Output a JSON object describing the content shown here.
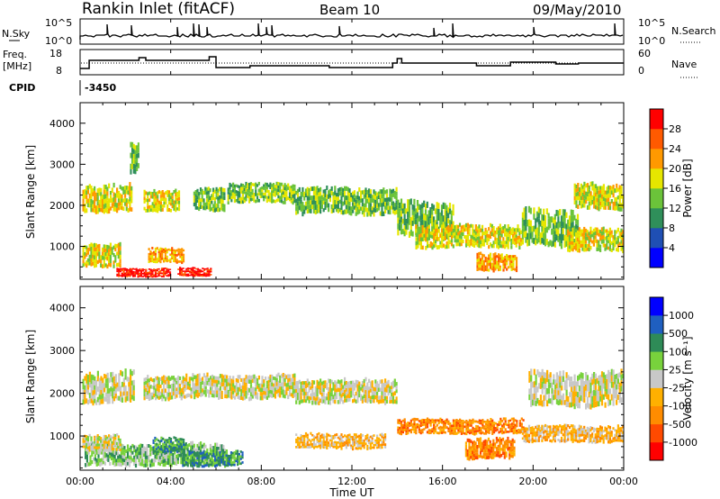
{
  "header": {
    "title": "Rankin Inlet (fitACF)",
    "beam": "Beam 10",
    "date": "09/May/2010"
  },
  "top_panels": {
    "nsky_label": "N.Sky",
    "nsky_ticks": [
      "10^5",
      "10^0"
    ],
    "nsearch_label": "N.Search",
    "nsearch_ticks": [
      "10^5",
      "10^0"
    ],
    "freq_label_1": "Freq.",
    "freq_label_2": "[MHz]",
    "freq_ticks": [
      "18",
      "8"
    ],
    "nave_label": "Nave",
    "nave_ticks": [
      "60",
      "0"
    ],
    "cpid_label": "CPID",
    "cpid_value": "-3450"
  },
  "chart_data": [
    {
      "type": "heatmap",
      "name": "power",
      "ylabel": "Slant Range [km]",
      "ylim": [
        200,
        4500
      ],
      "yticks": [
        "4000",
        "3000",
        "2000",
        "1000"
      ],
      "xlim": [
        0,
        24
      ],
      "colorbar_label": "Power [dB]",
      "colorbar_ticks": [
        "28",
        "24",
        "20",
        "16",
        "12",
        "8",
        "4"
      ],
      "colorbar_colors": [
        "#0000ff",
        "#1f4fb4",
        "#2f8f5a",
        "#6bc33a",
        "#e6e600",
        "#ff9900",
        "#ff5a00",
        "#ff0000"
      ],
      "blobs": [
        {
          "t0": 1.6,
          "t1": 4.0,
          "r0": 230,
          "r1": 500,
          "level": 7
        },
        {
          "t0": 4.3,
          "t1": 5.8,
          "r0": 240,
          "r1": 520,
          "level": 7
        },
        {
          "t0": 3.0,
          "t1": 4.6,
          "r0": 550,
          "r1": 1000,
          "level": 5
        },
        {
          "t0": 0.1,
          "t1": 1.8,
          "r0": 450,
          "r1": 1150,
          "level": 4
        },
        {
          "t0": 0.1,
          "t1": 2.3,
          "r0": 1750,
          "r1": 2600,
          "level": 4
        },
        {
          "t0": 2.8,
          "t1": 4.4,
          "r0": 1800,
          "r1": 2450,
          "level": 4
        },
        {
          "t0": 5.0,
          "t1": 6.4,
          "r0": 1800,
          "r1": 2500,
          "level": 3
        },
        {
          "t0": 6.5,
          "t1": 9.5,
          "r0": 2000,
          "r1": 2600,
          "level": 3
        },
        {
          "t0": 9.5,
          "t1": 14.0,
          "r0": 1700,
          "r1": 2500,
          "level": 3
        },
        {
          "t0": 14.0,
          "t1": 16.5,
          "r0": 1100,
          "r1": 2200,
          "level": 3
        },
        {
          "t0": 14.8,
          "t1": 19.5,
          "r0": 900,
          "r1": 1600,
          "level": 4
        },
        {
          "t0": 17.5,
          "t1": 19.3,
          "r0": 350,
          "r1": 900,
          "level": 5
        },
        {
          "t0": 19.5,
          "t1": 22.0,
          "r0": 900,
          "r1": 2000,
          "level": 3
        },
        {
          "t0": 21.5,
          "t1": 24.0,
          "r0": 800,
          "r1": 1500,
          "level": 4
        },
        {
          "t0": 21.8,
          "t1": 24.0,
          "r0": 1800,
          "r1": 2600,
          "level": 4
        },
        {
          "t0": 2.2,
          "t1": 2.6,
          "r0": 2700,
          "r1": 3600,
          "level": 3
        }
      ]
    },
    {
      "type": "heatmap",
      "name": "velocity",
      "ylabel": "Slant Range [km]",
      "ylim": [
        200,
        4500
      ],
      "yticks": [
        "4000",
        "3000",
        "2000",
        "1000"
      ],
      "xlim": [
        0,
        24
      ],
      "xticks": [
        "00:00",
        "04:00",
        "08:00",
        "12:00",
        "16:00",
        "20:00",
        "00:00"
      ],
      "xlabel": "Time UT",
      "colorbar_label": "Velocity [m s⁻¹]",
      "colorbar_ticks": [
        "1000",
        "500",
        "100",
        "25",
        "-25",
        "-100",
        "-500",
        "-1000"
      ],
      "colorbar_colors": [
        "#ff0000",
        "#ff4a00",
        "#ff8c00",
        "#ffb000",
        "#c8c8c8",
        "#78d23c",
        "#2e8b57",
        "#1f5fc0",
        "#0000ff"
      ],
      "blobs": [
        {
          "t0": 0.2,
          "t1": 6.5,
          "r0": 230,
          "r1": 900,
          "level": 5
        },
        {
          "t0": 3.2,
          "t1": 4.6,
          "r0": 550,
          "r1": 1000,
          "level": 6
        },
        {
          "t0": 4.5,
          "t1": 7.2,
          "r0": 250,
          "r1": 700,
          "level": 6
        },
        {
          "t0": 0.1,
          "t1": 1.8,
          "r0": 600,
          "r1": 1100,
          "level": 4
        },
        {
          "t0": 0.1,
          "t1": 2.4,
          "r0": 1700,
          "r1": 2600,
          "level": 4
        },
        {
          "t0": 2.8,
          "t1": 9.5,
          "r0": 1800,
          "r1": 2500,
          "level": 4
        },
        {
          "t0": 9.5,
          "t1": 14.0,
          "r0": 1700,
          "r1": 2400,
          "level": 4
        },
        {
          "t0": 14.0,
          "t1": 19.6,
          "r0": 1000,
          "r1": 1450,
          "level": 2
        },
        {
          "t0": 17.0,
          "t1": 19.2,
          "r0": 400,
          "r1": 1000,
          "level": 2
        },
        {
          "t0": 9.5,
          "t1": 13.5,
          "r0": 650,
          "r1": 1100,
          "level": 3
        },
        {
          "t0": 19.5,
          "t1": 24.0,
          "r0": 800,
          "r1": 1300,
          "level": 3
        },
        {
          "t0": 19.8,
          "t1": 24.0,
          "r0": 1600,
          "r1": 2600,
          "level": 4
        }
      ]
    }
  ]
}
